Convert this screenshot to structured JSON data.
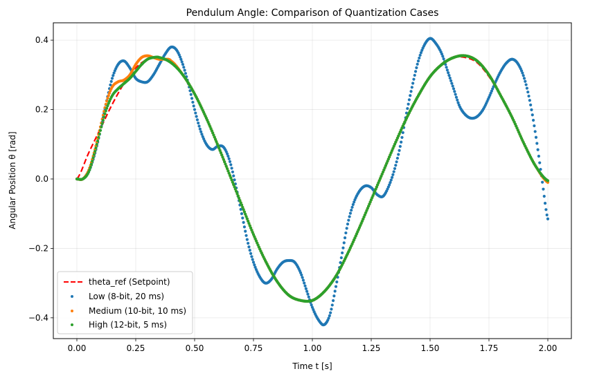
{
  "chart_data": {
    "type": "line",
    "title": "Pendulum Angle: Comparison of Quantization Cases",
    "xlabel": "Time t  [s]",
    "ylabel": "Angular Position θ  [rad]",
    "xlim": [
      -0.1,
      2.1
    ],
    "ylim": [
      -0.46,
      0.45
    ],
    "grid": true,
    "legend_position": "lower-left",
    "x_ticks": [
      "0.00",
      "0.25",
      "0.50",
      "0.75",
      "1.00",
      "1.25",
      "1.50",
      "1.75",
      "2.00"
    ],
    "y_ticks": [
      "−0.4",
      "−0.2",
      "0.0",
      "0.2",
      "0.4"
    ],
    "series": [
      {
        "name": "theta_ref (Setpoint)",
        "style": "dashed",
        "color": "#ff0000",
        "x": [
          0.0,
          0.05,
          0.1,
          0.15,
          0.2,
          0.25,
          0.3,
          0.35,
          0.4,
          0.45,
          0.5,
          0.55,
          0.6,
          0.65,
          0.7,
          0.75,
          0.8,
          0.85,
          0.9,
          0.95,
          1.0,
          1.05,
          1.1,
          1.15,
          1.2,
          1.25,
          1.3,
          1.35,
          1.4,
          1.45,
          1.5,
          1.55,
          1.6,
          1.65,
          1.7,
          1.75,
          1.8,
          1.85,
          1.9,
          1.95,
          2.0
        ],
        "y": [
          0.0,
          0.075,
          0.145,
          0.215,
          0.275,
          0.32,
          0.345,
          0.35,
          0.335,
          0.3,
          0.245,
          0.175,
          0.095,
          0.01,
          -0.075,
          -0.16,
          -0.235,
          -0.295,
          -0.335,
          -0.35,
          -0.35,
          -0.325,
          -0.28,
          -0.215,
          -0.14,
          -0.06,
          0.02,
          0.1,
          0.175,
          0.24,
          0.295,
          0.33,
          0.35,
          0.35,
          0.335,
          0.295,
          0.24,
          0.175,
          0.1,
          0.035,
          -0.01
        ]
      },
      {
        "name": "Low (8-bit, 20 ms)",
        "style": "dots",
        "color": "#1f77b4",
        "x": [
          0.0,
          0.025,
          0.05,
          0.075,
          0.1,
          0.125,
          0.15,
          0.175,
          0.2,
          0.225,
          0.25,
          0.275,
          0.3,
          0.325,
          0.35,
          0.375,
          0.4,
          0.425,
          0.45,
          0.475,
          0.5,
          0.525,
          0.55,
          0.575,
          0.6,
          0.625,
          0.65,
          0.675,
          0.7,
          0.725,
          0.75,
          0.775,
          0.8,
          0.825,
          0.85,
          0.875,
          0.9,
          0.925,
          0.95,
          0.975,
          1.0,
          1.025,
          1.05,
          1.075,
          1.1,
          1.125,
          1.15,
          1.175,
          1.2,
          1.225,
          1.25,
          1.275,
          1.3,
          1.325,
          1.35,
          1.375,
          1.4,
          1.425,
          1.45,
          1.475,
          1.5,
          1.525,
          1.55,
          1.575,
          1.6,
          1.625,
          1.65,
          1.675,
          1.7,
          1.725,
          1.75,
          1.775,
          1.8,
          1.825,
          1.85,
          1.875,
          1.9,
          1.925,
          1.95,
          1.975,
          2.0
        ],
        "y": [
          0.0,
          0.0,
          0.02,
          0.07,
          0.14,
          0.22,
          0.29,
          0.33,
          0.34,
          0.32,
          0.29,
          0.28,
          0.28,
          0.3,
          0.33,
          0.36,
          0.38,
          0.37,
          0.33,
          0.27,
          0.2,
          0.14,
          0.1,
          0.085,
          0.095,
          0.09,
          0.05,
          -0.02,
          -0.1,
          -0.18,
          -0.24,
          -0.28,
          -0.3,
          -0.29,
          -0.26,
          -0.24,
          -0.235,
          -0.24,
          -0.27,
          -0.32,
          -0.37,
          -0.405,
          -0.42,
          -0.39,
          -0.31,
          -0.22,
          -0.13,
          -0.07,
          -0.035,
          -0.02,
          -0.025,
          -0.045,
          -0.05,
          -0.02,
          0.03,
          0.1,
          0.19,
          0.27,
          0.34,
          0.385,
          0.405,
          0.39,
          0.36,
          0.31,
          0.26,
          0.21,
          0.185,
          0.175,
          0.18,
          0.2,
          0.235,
          0.275,
          0.31,
          0.335,
          0.345,
          0.33,
          0.29,
          0.22,
          0.12,
          0.0,
          -0.115
        ]
      },
      {
        "name": "Medium (10-bit, 10 ms)",
        "style": "dots",
        "color": "#ff7f0e",
        "x": [
          0.0,
          0.025,
          0.05,
          0.075,
          0.1,
          0.125,
          0.15,
          0.175,
          0.2,
          0.225,
          0.25,
          0.275,
          0.3,
          0.325,
          0.35,
          0.375,
          0.4,
          0.45,
          0.5,
          0.55,
          0.6,
          0.65,
          0.7,
          0.75,
          0.8,
          0.85,
          0.9,
          0.95,
          1.0,
          1.05,
          1.1,
          1.15,
          1.2,
          1.25,
          1.3,
          1.35,
          1.4,
          1.45,
          1.5,
          1.55,
          1.6,
          1.65,
          1.7,
          1.75,
          1.8,
          1.85,
          1.9,
          1.95,
          2.0
        ],
        "y": [
          0.0,
          0.0,
          0.025,
          0.08,
          0.15,
          0.22,
          0.265,
          0.28,
          0.285,
          0.3,
          0.33,
          0.35,
          0.355,
          0.35,
          0.345,
          0.345,
          0.34,
          0.3,
          0.245,
          0.175,
          0.095,
          0.01,
          -0.075,
          -0.16,
          -0.235,
          -0.295,
          -0.335,
          -0.35,
          -0.35,
          -0.325,
          -0.28,
          -0.215,
          -0.14,
          -0.06,
          0.02,
          0.1,
          0.175,
          0.24,
          0.295,
          0.33,
          0.35,
          0.355,
          0.34,
          0.3,
          0.24,
          0.175,
          0.1,
          0.035,
          -0.01
        ]
      },
      {
        "name": "High (12-bit, 5 ms)",
        "style": "dots",
        "color": "#2ca02c",
        "x": [
          0.0,
          0.025,
          0.05,
          0.075,
          0.1,
          0.125,
          0.15,
          0.175,
          0.2,
          0.225,
          0.25,
          0.275,
          0.3,
          0.325,
          0.35,
          0.4,
          0.45,
          0.5,
          0.55,
          0.6,
          0.65,
          0.7,
          0.75,
          0.8,
          0.85,
          0.9,
          0.95,
          1.0,
          1.05,
          1.1,
          1.15,
          1.2,
          1.25,
          1.3,
          1.35,
          1.4,
          1.45,
          1.5,
          1.55,
          1.6,
          1.65,
          1.7,
          1.75,
          1.8,
          1.85,
          1.9,
          1.95,
          2.0
        ],
        "y": [
          0.0,
          0.0,
          0.02,
          0.075,
          0.14,
          0.2,
          0.24,
          0.26,
          0.275,
          0.29,
          0.31,
          0.33,
          0.345,
          0.35,
          0.35,
          0.335,
          0.3,
          0.245,
          0.175,
          0.095,
          0.01,
          -0.075,
          -0.16,
          -0.235,
          -0.295,
          -0.335,
          -0.35,
          -0.35,
          -0.325,
          -0.28,
          -0.215,
          -0.14,
          -0.06,
          0.02,
          0.1,
          0.175,
          0.24,
          0.295,
          0.33,
          0.35,
          0.355,
          0.34,
          0.3,
          0.24,
          0.175,
          0.1,
          0.035,
          -0.005
        ]
      }
    ]
  }
}
